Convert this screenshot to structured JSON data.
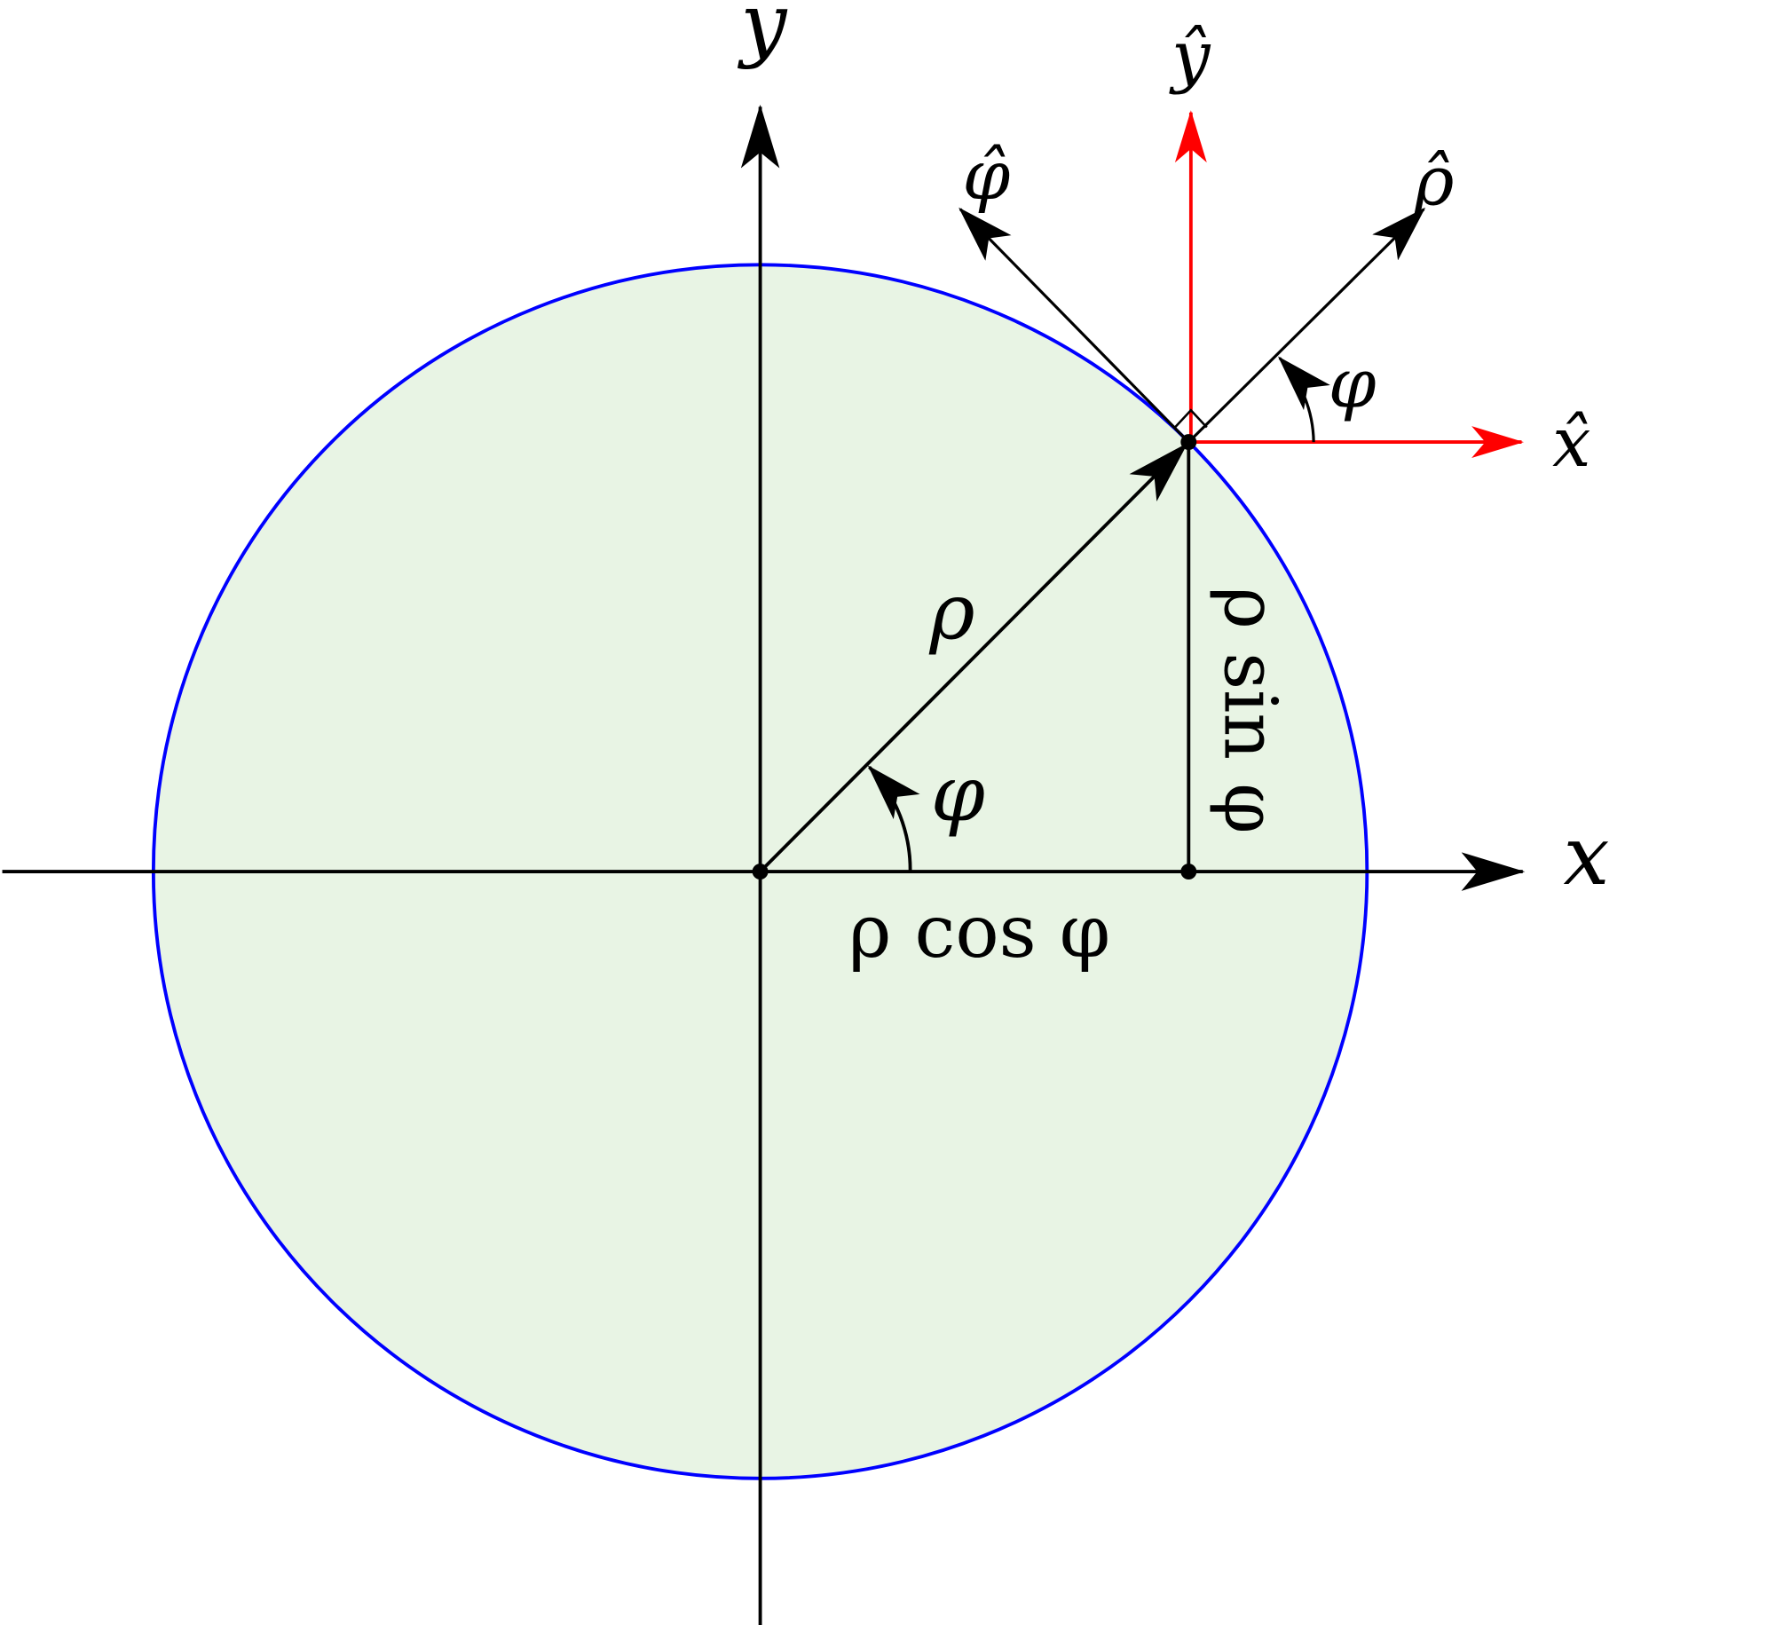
{
  "labels": {
    "x_axis": "x",
    "y_axis": "y",
    "x_hat": "x̂",
    "y_hat": "ŷ",
    "rho_hat": "ρ̂",
    "phi_hat": "φ̂",
    "rho": "ρ",
    "phi_origin": "φ",
    "phi_point": "φ",
    "rho_cos_phi": "ρ cos φ",
    "rho_sin_phi": "ρ sin φ"
  },
  "colors": {
    "circle_stroke": "#0000ff",
    "circle_fill": "#e8f4e4",
    "unit_cartesian": "#ff0000",
    "lines": "#000000"
  },
  "angle_phi_degrees": 45
}
